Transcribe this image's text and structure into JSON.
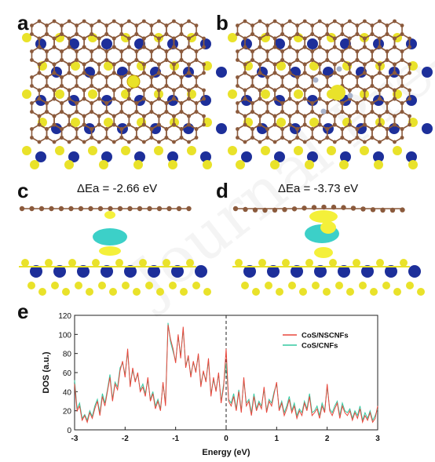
{
  "panels": {
    "a": "a",
    "b": "b",
    "c": "c",
    "d": "d",
    "e": "e"
  },
  "energies": {
    "c": "ΔEa = -2.66 eV",
    "d": "ΔEa = -3.73 eV"
  },
  "watermark": "Journal Pre-proof",
  "colors": {
    "carbon": "#8b5a3c",
    "cobalt": "#1d2f9a",
    "sulfur": "#e9e22a",
    "nitrogen": "#a9b4cc",
    "charge_accumulation": "#f4f03a",
    "charge_depletion": "#3cd0c8"
  },
  "chart_data": {
    "type": "line",
    "xlabel": "Energy (eV)",
    "ylabel": "DOS (a.u.)",
    "xlim": [
      -3,
      3
    ],
    "ylim": [
      0,
      120
    ],
    "xticks": [
      "-3",
      "-2",
      "-1",
      "0",
      "1",
      "2",
      "3"
    ],
    "yticks": [
      "0",
      "20",
      "40",
      "60",
      "80",
      "100",
      "120"
    ],
    "fermi_level": 0,
    "legend_position": "top-right",
    "series": [
      {
        "name": "CoS/NSCNFs",
        "color": "#e8473c",
        "x": [
          -3.0,
          -2.95,
          -2.9,
          -2.85,
          -2.8,
          -2.75,
          -2.7,
          -2.65,
          -2.6,
          -2.55,
          -2.5,
          -2.45,
          -2.4,
          -2.35,
          -2.3,
          -2.25,
          -2.2,
          -2.15,
          -2.1,
          -2.05,
          -2.0,
          -1.95,
          -1.9,
          -1.85,
          -1.8,
          -1.75,
          -1.7,
          -1.65,
          -1.6,
          -1.55,
          -1.5,
          -1.45,
          -1.4,
          -1.35,
          -1.3,
          -1.25,
          -1.2,
          -1.15,
          -1.1,
          -1.05,
          -1.0,
          -0.95,
          -0.9,
          -0.85,
          -0.8,
          -0.75,
          -0.7,
          -0.65,
          -0.6,
          -0.55,
          -0.5,
          -0.45,
          -0.4,
          -0.35,
          -0.3,
          -0.25,
          -0.2,
          -0.15,
          -0.1,
          -0.05,
          0.0,
          0.05,
          0.1,
          0.15,
          0.2,
          0.25,
          0.3,
          0.35,
          0.4,
          0.45,
          0.5,
          0.55,
          0.6,
          0.65,
          0.7,
          0.75,
          0.8,
          0.85,
          0.9,
          0.95,
          1.0,
          1.05,
          1.1,
          1.15,
          1.2,
          1.25,
          1.3,
          1.35,
          1.4,
          1.45,
          1.5,
          1.55,
          1.6,
          1.65,
          1.7,
          1.75,
          1.8,
          1.85,
          1.9,
          1.95,
          2.0,
          2.05,
          2.1,
          2.15,
          2.2,
          2.25,
          2.3,
          2.35,
          2.4,
          2.45,
          2.5,
          2.55,
          2.6,
          2.65,
          2.7,
          2.75,
          2.8,
          2.85,
          2.9,
          2.95,
          3.0
        ],
        "y": [
          48,
          20,
          25,
          10,
          15,
          8,
          18,
          12,
          22,
          30,
          15,
          35,
          25,
          40,
          55,
          30,
          48,
          42,
          62,
          72,
          55,
          85,
          45,
          65,
          50,
          60,
          40,
          45,
          35,
          55,
          30,
          38,
          22,
          30,
          20,
          50,
          25,
          110,
          95,
          85,
          70,
          100,
          75,
          108,
          65,
          78,
          55,
          72,
          60,
          80,
          45,
          62,
          50,
          75,
          35,
          55,
          40,
          60,
          28,
          45,
          85,
          30,
          25,
          35,
          20,
          40,
          18,
          55,
          25,
          30,
          15,
          35,
          20,
          28,
          22,
          45,
          18,
          30,
          25,
          38,
          50,
          20,
          28,
          15,
          22,
          32,
          18,
          25,
          12,
          20,
          15,
          28,
          20,
          35,
          15,
          18,
          22,
          12,
          25,
          18,
          48,
          20,
          15,
          22,
          28,
          12,
          25,
          18,
          15,
          20,
          10,
          18,
          12,
          22,
          8,
          15,
          10,
          18,
          8,
          12,
          25
        ]
      },
      {
        "name": "CoS/CNFs",
        "color": "#33c9a0",
        "x": [
          -3.0,
          -2.95,
          -2.9,
          -2.85,
          -2.8,
          -2.75,
          -2.7,
          -2.65,
          -2.6,
          -2.55,
          -2.5,
          -2.45,
          -2.4,
          -2.35,
          -2.3,
          -2.25,
          -2.2,
          -2.15,
          -2.1,
          -2.05,
          -2.0,
          -1.95,
          -1.9,
          -1.85,
          -1.8,
          -1.75,
          -1.7,
          -1.65,
          -1.6,
          -1.55,
          -1.5,
          -1.45,
          -1.4,
          -1.35,
          -1.3,
          -1.25,
          -1.2,
          -1.15,
          -1.1,
          -1.05,
          -1.0,
          -0.95,
          -0.9,
          -0.85,
          -0.8,
          -0.75,
          -0.7,
          -0.65,
          -0.6,
          -0.55,
          -0.5,
          -0.45,
          -0.4,
          -0.35,
          -0.3,
          -0.25,
          -0.2,
          -0.15,
          -0.1,
          -0.05,
          0.0,
          0.05,
          0.1,
          0.15,
          0.2,
          0.25,
          0.3,
          0.35,
          0.4,
          0.45,
          0.5,
          0.55,
          0.6,
          0.65,
          0.7,
          0.75,
          0.8,
          0.85,
          0.9,
          0.95,
          1.0,
          1.05,
          1.1,
          1.15,
          1.2,
          1.25,
          1.3,
          1.35,
          1.4,
          1.45,
          1.5,
          1.55,
          1.6,
          1.65,
          1.7,
          1.75,
          1.8,
          1.85,
          1.9,
          1.95,
          2.0,
          2.05,
          2.1,
          2.15,
          2.2,
          2.25,
          2.3,
          2.35,
          2.4,
          2.45,
          2.5,
          2.55,
          2.6,
          2.65,
          2.7,
          2.75,
          2.8,
          2.85,
          2.9,
          2.95,
          3.0
        ],
        "y": [
          52,
          22,
          28,
          12,
          16,
          10,
          20,
          14,
          25,
          32,
          18,
          38,
          28,
          42,
          58,
          32,
          50,
          45,
          65,
          70,
          58,
          82,
          48,
          62,
          52,
          58,
          42,
          48,
          38,
          52,
          32,
          40,
          25,
          32,
          22,
          48,
          28,
          112,
          92,
          82,
          72,
          98,
          78,
          105,
          68,
          75,
          58,
          70,
          62,
          78,
          48,
          60,
          52,
          72,
          38,
          52,
          42,
          58,
          30,
          48,
          70,
          32,
          28,
          38,
          22,
          42,
          20,
          52,
          28,
          32,
          18,
          38,
          22,
          30,
          25,
          42,
          20,
          32,
          28,
          40,
          48,
          22,
          30,
          18,
          25,
          35,
          20,
          28,
          15,
          22,
          18,
          30,
          22,
          38,
          18,
          20,
          25,
          15,
          28,
          20,
          45,
          22,
          18,
          25,
          30,
          15,
          28,
          20,
          18,
          22,
          12,
          20,
          15,
          25,
          10,
          18,
          12,
          20,
          10,
          15,
          22
        ]
      }
    ]
  }
}
